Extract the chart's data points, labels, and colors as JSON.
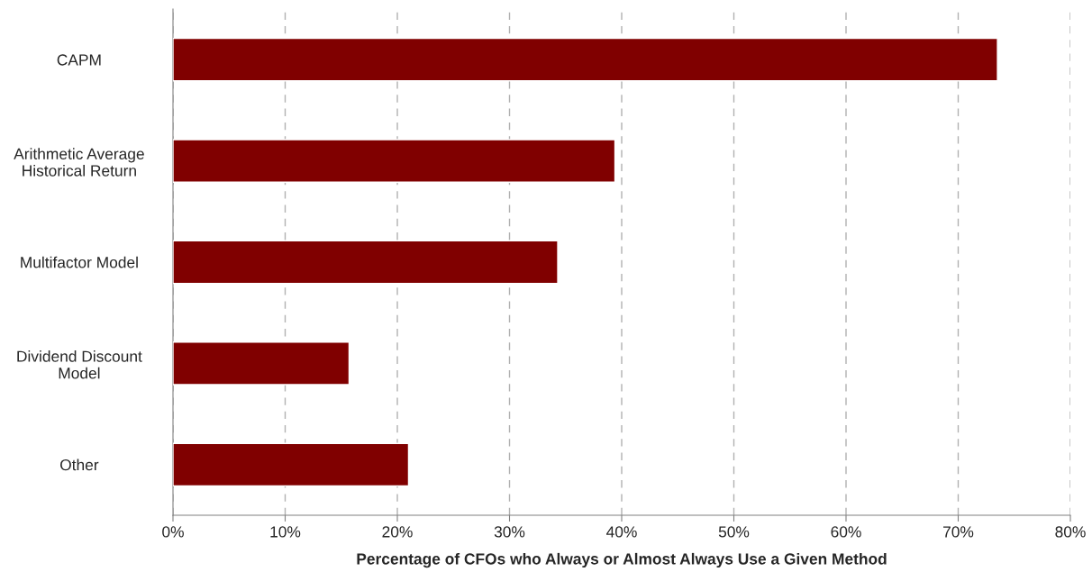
{
  "chart_data": {
    "type": "bar",
    "orientation": "horizontal",
    "categories": [
      "CAPM",
      "Arithmetic Average\nHistorical Return",
      "Multifactor Model",
      "Dividend Discount\nModel",
      "Other"
    ],
    "values": [
      73.5,
      39.4,
      34.3,
      15.7,
      21.0
    ],
    "color": "#800000",
    "xlabel": "Percentage of CFOs who Always or Almost Always Use a Given Method",
    "xlim": [
      0,
      80
    ],
    "xticks": [
      {
        "value": 0,
        "label": "0%"
      },
      {
        "value": 10,
        "label": "10%"
      },
      {
        "value": 20,
        "label": "20%"
      },
      {
        "value": 30,
        "label": "30%"
      },
      {
        "value": 40,
        "label": "40%"
      },
      {
        "value": 50,
        "label": "50%"
      },
      {
        "value": 60,
        "label": "60%"
      },
      {
        "value": 70,
        "label": "70%"
      },
      {
        "value": 80,
        "label": "80%"
      }
    ],
    "grid": "x",
    "legend": false
  }
}
